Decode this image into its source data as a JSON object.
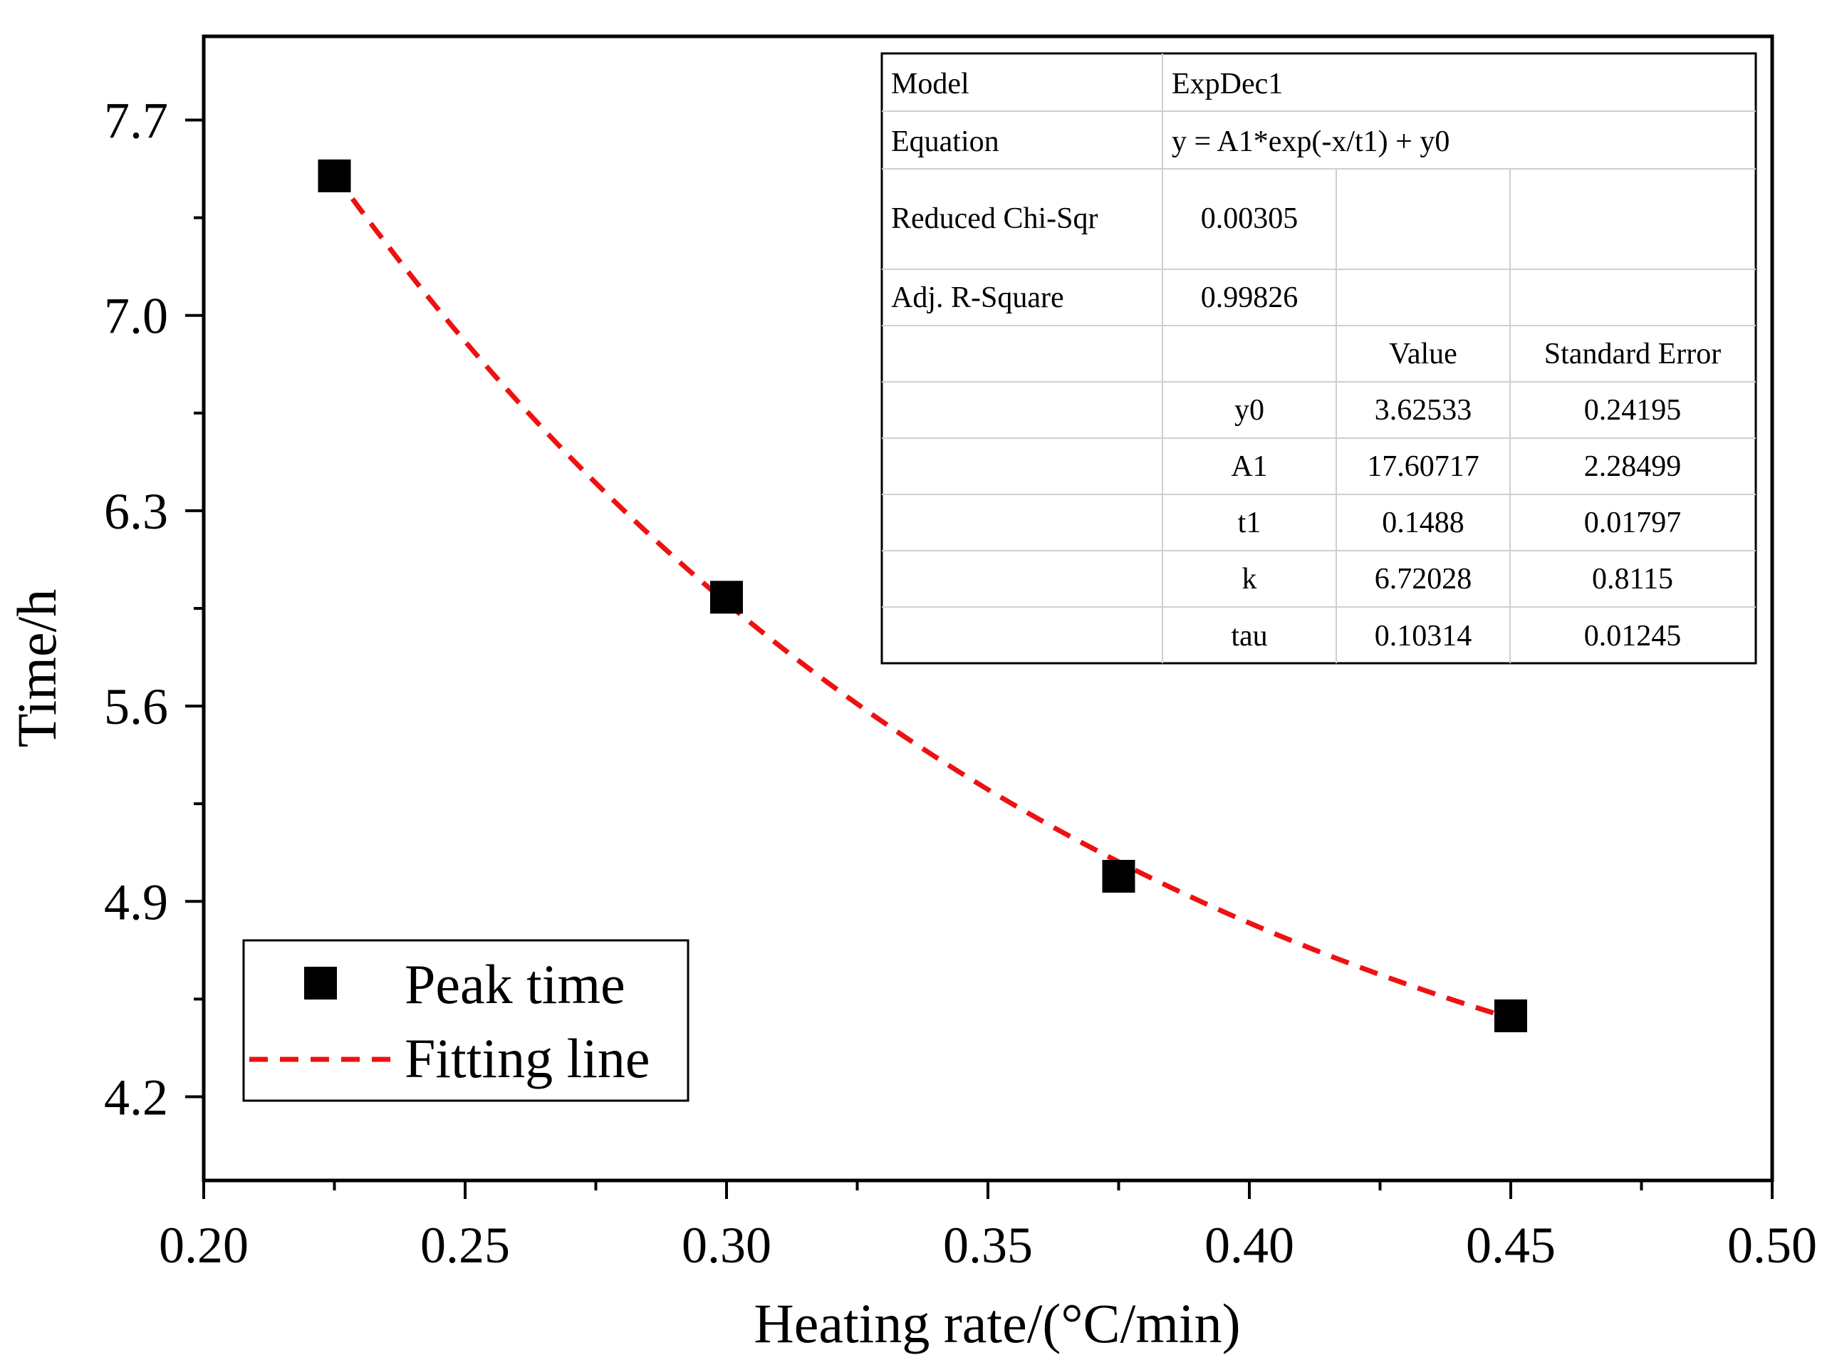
{
  "chart_data": {
    "type": "scatter",
    "xlabel": "Heating rate/(°C/min)",
    "ylabel": "Time/h",
    "xlim": [
      0.2,
      0.5
    ],
    "ylim": [
      3.9,
      8.0
    ],
    "x_ticks": [
      0.2,
      0.25,
      0.3,
      0.35,
      0.4,
      0.45,
      0.5
    ],
    "x_tick_labels": [
      "0.20",
      "0.25",
      "0.30",
      "0.35",
      "0.40",
      "0.45",
      "0.50"
    ],
    "y_ticks": [
      4.2,
      4.9,
      5.6,
      6.3,
      7.0,
      7.7
    ],
    "y_tick_labels": [
      "4.2",
      "4.9",
      "5.6",
      "6.3",
      "7.0",
      "7.7"
    ],
    "grid": false,
    "legend_position": "bottom-left",
    "series": [
      {
        "name": "Peak time",
        "kind": "scatter",
        "marker": "square",
        "color": "#000000",
        "x": [
          0.225,
          0.3,
          0.375,
          0.45
        ],
        "y": [
          7.5,
          5.99,
          4.99,
          4.49
        ]
      },
      {
        "name": "Fitting line",
        "kind": "line",
        "style": "dashed",
        "color": "#ee1111",
        "model": "ExpDec1",
        "params": {
          "y0": 3.62533,
          "A1": 17.60717,
          "t1": 0.1488
        },
        "x_range": [
          0.225,
          0.45
        ]
      }
    ],
    "fit_table": {
      "model_label": "Model",
      "model_value": "ExpDec1",
      "equation_label": "Equation",
      "equation_value": "y = A1*exp(-x/t1) + y0",
      "chi_label": "Reduced Chi-Sqr",
      "chi_value": "0.00305",
      "r2_label": "Adj. R-Square",
      "r2_value": "0.99826",
      "col_value": "Value",
      "col_error": "Standard Error",
      "rows": [
        {
          "name": "y0",
          "value": "3.62533",
          "error": "0.24195"
        },
        {
          "name": "A1",
          "value": "17.60717",
          "error": "2.28499"
        },
        {
          "name": "t1",
          "value": "0.1488",
          "error": "0.01797"
        },
        {
          "name": "k",
          "value": "6.72028",
          "error": "0.8115"
        },
        {
          "name": "tau",
          "value": "0.10314",
          "error": "0.01245"
        }
      ]
    }
  }
}
